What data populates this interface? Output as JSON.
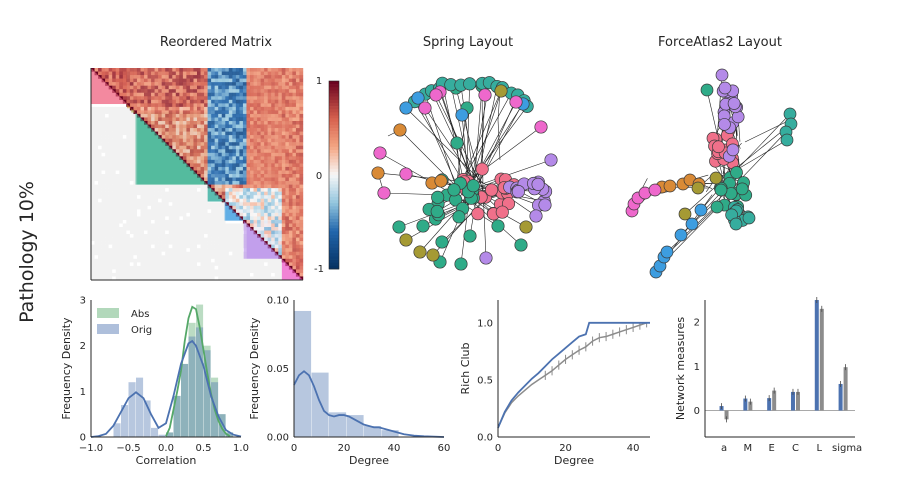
{
  "row_label": "Pathology 10%",
  "colors": {
    "red": "#f0708a",
    "orange": "#d98a36",
    "olive": "#a59a34",
    "green": "#2fab88",
    "teal": "#36ad9e",
    "blue": "#3d9de0",
    "purple": "#b48ae8",
    "pink": "#ee68cc",
    "line_blue": "#4c72b0",
    "line_gray": "#8c8c8c",
    "kde_green": "#55a868"
  },
  "chart_data": [
    {
      "type": "heatmap",
      "title": "Reordered Matrix",
      "colorbar": {
        "ticks": [
          "1",
          "0",
          "-1"
        ],
        "range": [
          -1,
          1
        ],
        "cmap": "RdBu_r"
      },
      "communities": [
        {
          "start": 0.0,
          "end": 0.17,
          "color": "#f0708a"
        },
        {
          "start": 0.17,
          "end": 0.19,
          "color": "#d98a36"
        },
        {
          "start": 0.19,
          "end": 0.21,
          "color": "#a59a34"
        },
        {
          "start": 0.21,
          "end": 0.55,
          "color": "#2fab88"
        },
        {
          "start": 0.55,
          "end": 0.63,
          "color": "#36ad9e"
        },
        {
          "start": 0.63,
          "end": 0.72,
          "color": "#3d9de0"
        },
        {
          "start": 0.72,
          "end": 0.9,
          "color": "#b48ae8"
        },
        {
          "start": 0.9,
          "end": 1.0,
          "color": "#ee68cc"
        }
      ]
    },
    {
      "type": "network",
      "title": "Spring Layout"
    },
    {
      "type": "network",
      "title": "ForceAtlas2 Layout"
    },
    {
      "type": "histogram",
      "xlabel": "Correlation",
      "ylabel": "Frequency Density",
      "xlim": [
        -1.0,
        1.0
      ],
      "ylim": [
        0,
        3
      ],
      "xticks": [
        "−1.0",
        "−0.5",
        "0.0",
        "0.5",
        "1.0"
      ],
      "yticks": [
        "0",
        "1",
        "2",
        "3"
      ],
      "legend": [
        "Abs",
        "Orig"
      ],
      "bins": [
        -1.0,
        -0.9,
        -0.8,
        -0.7,
        -0.6,
        -0.5,
        -0.4,
        -0.3,
        -0.2,
        -0.1,
        0.0,
        0.1,
        0.2,
        0.3,
        0.4,
        0.5,
        0.6,
        0.7,
        0.8,
        0.9,
        1.0
      ],
      "series": [
        {
          "name": "Abs",
          "counts": [
            0,
            0,
            0,
            0,
            0,
            0,
            0,
            0,
            0,
            0,
            0.1,
            0.9,
            1.6,
            2.5,
            2.9,
            2.0,
            1.3,
            0.5,
            0.1,
            0,
            0
          ],
          "kde": [
            [
              0.0,
              0.02
            ],
            [
              0.05,
              0.2
            ],
            [
              0.1,
              0.6
            ],
            [
              0.15,
              1.0
            ],
            [
              0.2,
              1.45
            ],
            [
              0.25,
              2.1
            ],
            [
              0.3,
              2.6
            ],
            [
              0.35,
              2.85
            ],
            [
              0.4,
              2.8
            ],
            [
              0.45,
              2.4
            ],
            [
              0.5,
              1.9
            ],
            [
              0.55,
              1.4
            ],
            [
              0.6,
              0.95
            ],
            [
              0.65,
              0.6
            ],
            [
              0.7,
              0.35
            ],
            [
              0.75,
              0.18
            ],
            [
              0.8,
              0.07
            ],
            [
              0.85,
              0.02
            ]
          ]
        },
        {
          "name": "Orig",
          "counts": [
            0,
            0,
            0,
            0.3,
            0.7,
            1.2,
            1.3,
            0.8,
            0.2,
            0.05,
            0.1,
            0.9,
            1.6,
            2.2,
            2.4,
            1.9,
            1.2,
            0.5,
            0.1,
            0,
            0
          ],
          "kde": [
            [
              -1.0,
              0.0
            ],
            [
              -0.9,
              0.02
            ],
            [
              -0.8,
              0.07
            ],
            [
              -0.7,
              0.25
            ],
            [
              -0.6,
              0.55
            ],
            [
              -0.5,
              0.85
            ],
            [
              -0.4,
              0.98
            ],
            [
              -0.3,
              0.85
            ],
            [
              -0.2,
              0.5
            ],
            [
              -0.1,
              0.2
            ],
            [
              0.0,
              0.3
            ],
            [
              0.1,
              0.9
            ],
            [
              0.2,
              1.6
            ],
            [
              0.3,
              2.05
            ],
            [
              0.35,
              2.1
            ],
            [
              0.4,
              2.0
            ],
            [
              0.5,
              1.55
            ],
            [
              0.6,
              0.9
            ],
            [
              0.7,
              0.45
            ],
            [
              0.8,
              0.15
            ],
            [
              0.9,
              0.05
            ],
            [
              1.0,
              0.01
            ]
          ]
        }
      ]
    },
    {
      "type": "histogram",
      "xlabel": "Degree",
      "ylabel": "Frequency Density",
      "xlim": [
        0,
        60
      ],
      "ylim": [
        0,
        0.1
      ],
      "xticks": [
        "0",
        "20",
        "40",
        "60"
      ],
      "yticks": [
        "0.00",
        "0.05",
        "0.10"
      ],
      "bins": [
        0,
        7,
        14,
        21,
        28,
        35,
        42,
        49
      ],
      "counts": [
        0.092,
        0.047,
        0.018,
        0.016,
        0.008,
        0.005,
        0.0
      ],
      "kde": [
        [
          0,
          0.038
        ],
        [
          2,
          0.045
        ],
        [
          4,
          0.048
        ],
        [
          6,
          0.045
        ],
        [
          8,
          0.037
        ],
        [
          10,
          0.027
        ],
        [
          12,
          0.019
        ],
        [
          14,
          0.016
        ],
        [
          16,
          0.015
        ],
        [
          18,
          0.016
        ],
        [
          20,
          0.016
        ],
        [
          22,
          0.015
        ],
        [
          24,
          0.013
        ],
        [
          26,
          0.011
        ],
        [
          28,
          0.009
        ],
        [
          30,
          0.008
        ],
        [
          32,
          0.007
        ],
        [
          34,
          0.007
        ],
        [
          36,
          0.006
        ],
        [
          38,
          0.005
        ],
        [
          40,
          0.004
        ],
        [
          42,
          0.003
        ],
        [
          44,
          0.002
        ],
        [
          48,
          0.001
        ],
        [
          52,
          0.0005
        ],
        [
          60,
          0.0
        ]
      ]
    },
    {
      "type": "line",
      "xlabel": "Degree",
      "ylabel": "Rich Club",
      "xlim": [
        0,
        45
      ],
      "ylim": [
        0,
        1.2
      ],
      "xticks": [
        "0",
        "20",
        "40"
      ],
      "yticks": [
        "0.0",
        "0.5",
        "1.0"
      ],
      "series": [
        {
          "name": "",
          "x": [
            0,
            2,
            4,
            6,
            8,
            10,
            12,
            14,
            16,
            18,
            20,
            22,
            24,
            26,
            27,
            30,
            35,
            40,
            45
          ],
          "y": [
            0.08,
            0.22,
            0.32,
            0.39,
            0.45,
            0.51,
            0.56,
            0.62,
            0.68,
            0.73,
            0.78,
            0.83,
            0.88,
            0.9,
            1.0,
            1.0,
            1.0,
            1.0,
            1.0
          ]
        },
        {
          "name": "",
          "x": [
            0,
            2,
            4,
            6,
            8,
            10,
            12,
            14,
            16,
            18,
            20,
            22,
            24,
            26,
            28,
            30,
            32,
            34,
            36,
            38,
            40,
            42,
            44
          ],
          "y": [
            0.08,
            0.21,
            0.3,
            0.36,
            0.41,
            0.46,
            0.5,
            0.54,
            0.58,
            0.63,
            0.68,
            0.72,
            0.76,
            0.79,
            0.84,
            0.87,
            0.88,
            0.9,
            0.92,
            0.94,
            0.96,
            0.98,
            1.0
          ]
        }
      ]
    },
    {
      "type": "bar",
      "ylabel": "Network measures",
      "categories": [
        "a",
        "M",
        "E",
        "C",
        "L",
        "sigma"
      ],
      "ylim": [
        -0.6,
        2.5
      ],
      "yticks": [
        "0",
        "1",
        "2"
      ],
      "series": [
        {
          "name": "",
          "values": [
            0.1,
            0.27,
            0.28,
            0.42,
            2.5,
            0.6
          ]
        },
        {
          "name": "",
          "values": [
            -0.2,
            0.2,
            0.45,
            0.42,
            2.3,
            0.98
          ]
        }
      ]
    }
  ]
}
